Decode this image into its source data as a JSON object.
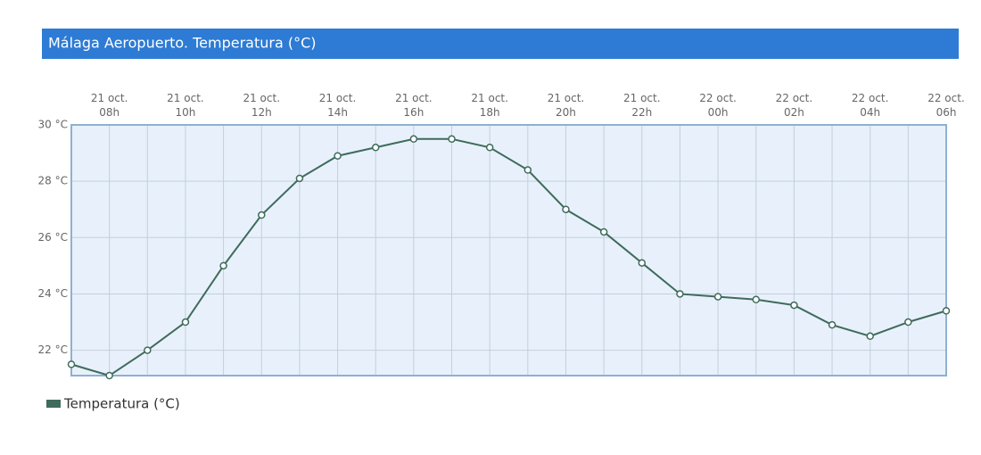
{
  "chart_data": {
    "type": "line",
    "title": "Málaga Aeropuerto. Temperatura (°C)",
    "categories": [
      null,
      "21 oct.\n08h",
      null,
      "21 oct.\n10h",
      null,
      "21 oct.\n12h",
      null,
      "21 oct.\n14h",
      null,
      "21 oct.\n16h",
      null,
      "21 oct.\n18h",
      null,
      "21 oct.\n20h",
      null,
      "21 oct.\n22h",
      null,
      "22 oct.\n00h",
      null,
      "22 oct.\n02h",
      null,
      "22 oct.\n04h",
      null,
      "22 oct.\n06h"
    ],
    "series": [
      {
        "name": "Temperatura (°C)",
        "color": "#3f6b5c",
        "values": [
          21.5,
          21.1,
          22.0,
          23.0,
          25.0,
          26.8,
          28.1,
          28.9,
          29.2,
          29.5,
          29.5,
          29.2,
          28.4,
          27.0,
          26.2,
          25.1,
          24.0,
          23.9,
          23.8,
          23.6,
          22.9,
          22.5,
          23.0,
          23.4
        ]
      }
    ],
    "ylim": [
      21.1,
      30
    ],
    "yticks": [
      {
        "value": 22,
        "label": "22 °C"
      },
      {
        "value": 24,
        "label": "24 °C"
      },
      {
        "value": 26,
        "label": "26 °C"
      },
      {
        "value": 28,
        "label": "28 °C"
      },
      {
        "value": 30,
        "label": "30 °C"
      }
    ],
    "grid": true
  }
}
